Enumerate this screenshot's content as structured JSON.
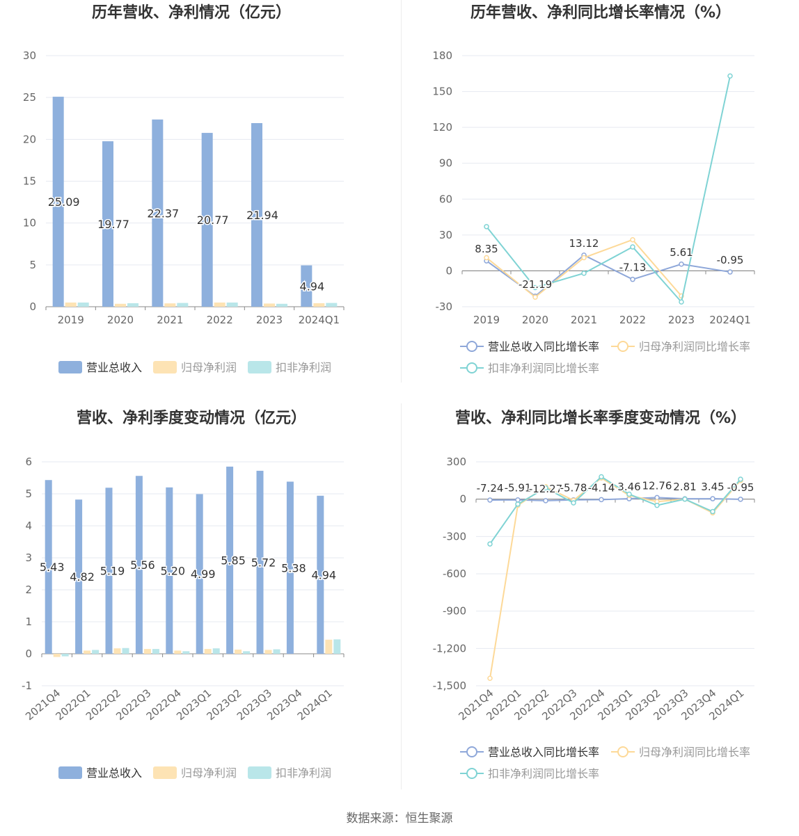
{
  "colors": {
    "revenue": "#8eb0dd",
    "net_profit": "#fde3b4",
    "deducted_profit": "#b9e6e9",
    "line_revenue": "#8ea7d9",
    "line_net_profit": "#fdd998",
    "line_deducted": "#7fd3d4",
    "grid": "#e6e9f0",
    "axis_text": "#666666",
    "title_text": "#333333"
  },
  "source_text": "数据来源：恒生聚源",
  "chart_data": [
    {
      "id": "annual-bar",
      "type": "bar",
      "title": "历年营收、净利情况（亿元）",
      "categories": [
        "2019",
        "2020",
        "2021",
        "2022",
        "2023",
        "2024Q1"
      ],
      "series": [
        {
          "name": "营业总收入",
          "values": [
            25.09,
            19.77,
            22.37,
            20.77,
            21.94,
            4.94
          ],
          "labels": [
            "25.09",
            "19.77",
            "22.37",
            "20.77",
            "21.94",
            "4.94"
          ]
        },
        {
          "name": "归母净利润",
          "values": [
            0.5,
            0.35,
            0.4,
            0.5,
            0.38,
            0.42
          ]
        },
        {
          "name": "扣非净利润",
          "values": [
            0.5,
            0.42,
            0.45,
            0.5,
            0.35,
            0.45
          ]
        }
      ],
      "ylim": [
        0,
        30
      ],
      "yticks": [
        "0",
        "5",
        "10",
        "15",
        "20",
        "25",
        "30"
      ],
      "ytick_values": [
        0,
        5,
        10,
        15,
        20,
        25,
        30
      ],
      "grid": true,
      "legend": "bottom"
    },
    {
      "id": "annual-line",
      "type": "line",
      "title": "历年营收、净利同比增长率情况（%）",
      "categories": [
        "2019",
        "2020",
        "2021",
        "2022",
        "2023",
        "2024Q1"
      ],
      "series": [
        {
          "name": "营业总收入同比增长率",
          "values": [
            8.35,
            -21.19,
            13.12,
            -7.13,
            5.61,
            -0.95
          ],
          "labels": [
            "8.35",
            "-21.19",
            "13.12",
            "-7.13",
            "5.61",
            "-0.95"
          ]
        },
        {
          "name": "归母净利润同比增长率",
          "values": [
            11,
            -22,
            11,
            26,
            -21,
            null
          ]
        },
        {
          "name": "扣非净利润同比增长率",
          "values": [
            37,
            -14,
            -2,
            20,
            -26,
            163
          ]
        }
      ],
      "ylim": [
        -30,
        180
      ],
      "yticks": [
        "-30",
        "0",
        "30",
        "60",
        "90",
        "120",
        "150",
        "180"
      ],
      "ytick_values": [
        -30,
        0,
        30,
        60,
        90,
        120,
        150,
        180
      ],
      "grid": true,
      "legend": "bottom"
    },
    {
      "id": "quarter-bar",
      "type": "bar",
      "title": "营收、净利季度变动情况（亿元）",
      "categories": [
        "2021Q4",
        "2022Q1",
        "2022Q2",
        "2022Q3",
        "2022Q4",
        "2023Q1",
        "2023Q2",
        "2023Q3",
        "2023Q4",
        "2024Q1"
      ],
      "series": [
        {
          "name": "营业总收入",
          "values": [
            5.43,
            4.82,
            5.19,
            5.56,
            5.2,
            4.99,
            5.85,
            5.72,
            5.38,
            4.94
          ],
          "labels": [
            "5.43",
            "4.82",
            "5.19",
            "5.56",
            "5.20",
            "4.99",
            "5.85",
            "5.72",
            "5.38",
            "4.94"
          ]
        },
        {
          "name": "归母净利润",
          "values": [
            -0.1,
            0.1,
            0.17,
            0.15,
            0.1,
            0.15,
            0.13,
            0.12,
            0.0,
            0.44
          ]
        },
        {
          "name": "扣非净利润",
          "values": [
            -0.08,
            0.12,
            0.18,
            0.15,
            0.08,
            0.17,
            0.08,
            0.14,
            0.0,
            0.45
          ]
        }
      ],
      "ylim": [
        -1,
        6
      ],
      "yticks": [
        "-1",
        "0",
        "1",
        "2",
        "3",
        "4",
        "5",
        "6"
      ],
      "ytick_values": [
        -1,
        0,
        1,
        2,
        3,
        4,
        5,
        6
      ],
      "grid": true,
      "legend": "bottom"
    },
    {
      "id": "quarter-line",
      "type": "line",
      "title": "营收、净利同比增长率季度变动情况（%）",
      "categories": [
        "2021Q4",
        "2022Q1",
        "2022Q2",
        "2022Q3",
        "2022Q4",
        "2023Q1",
        "2023Q2",
        "2023Q3",
        "2023Q4",
        "2024Q1"
      ],
      "series": [
        {
          "name": "营业总收入同比增长率",
          "values": [
            -7.24,
            -5.91,
            -12.27,
            -5.78,
            -4.14,
            3.46,
            12.76,
            2.81,
            3.45,
            -0.95
          ],
          "labels": [
            "-7.24",
            "-5.91",
            "-12.27",
            "-5.78",
            "-4.14",
            "3.46",
            "12.76",
            "2.81",
            "3.45",
            "-0.95"
          ]
        },
        {
          "name": "归母净利润同比增长率",
          "values": [
            -1440,
            -50,
            100,
            -10,
            170,
            30,
            -20,
            0,
            -110,
            150
          ]
        },
        {
          "name": "扣非净利润同比增长率",
          "values": [
            -360,
            -40,
            90,
            -30,
            180,
            40,
            -50,
            0,
            -100,
            160
          ]
        }
      ],
      "ylim": [
        -1500,
        300
      ],
      "yticks": [
        "-1,500",
        "-1,200",
        "-900",
        "-600",
        "-300",
        "0",
        "300"
      ],
      "ytick_values": [
        -1500,
        -1200,
        -900,
        -600,
        -300,
        0,
        300
      ],
      "grid": true,
      "legend": "bottom"
    }
  ]
}
